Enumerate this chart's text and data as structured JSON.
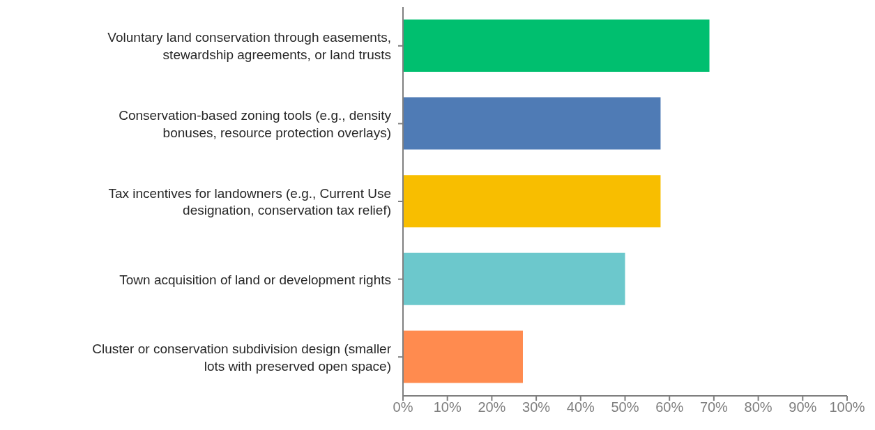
{
  "chart_data": {
    "type": "bar",
    "orientation": "horizontal",
    "categories": [
      "Voluntary land conservation through easements, stewardship agreements, or land trusts",
      "Conservation-based zoning tools (e.g., density bonuses, resource protection overlays)",
      "Tax incentives for landowners (e.g., Current Use designation, conservation tax relief)",
      "Town acquisition of land or development rights",
      "Cluster or conservation subdivision design (smaller lots with preserved open space)"
    ],
    "values": [
      69,
      58,
      58,
      50,
      27
    ],
    "colors": [
      "#00bf6f",
      "#4f7bb5",
      "#f8be00",
      "#6cc8cc",
      "#ff8b4f"
    ],
    "xlim": [
      0,
      100
    ],
    "xticks": [
      {
        "value": 0,
        "label": "0%"
      },
      {
        "value": 10,
        "label": "10%"
      },
      {
        "value": 20,
        "label": "20%"
      },
      {
        "value": 30,
        "label": "30%"
      },
      {
        "value": 40,
        "label": "40%"
      },
      {
        "value": 50,
        "label": "50%"
      },
      {
        "value": 60,
        "label": "60%"
      },
      {
        "value": 70,
        "label": "70%"
      },
      {
        "value": 80,
        "label": "80%"
      },
      {
        "value": 90,
        "label": "90%"
      },
      {
        "value": 100,
        "label": "100%"
      }
    ],
    "grid": false
  }
}
